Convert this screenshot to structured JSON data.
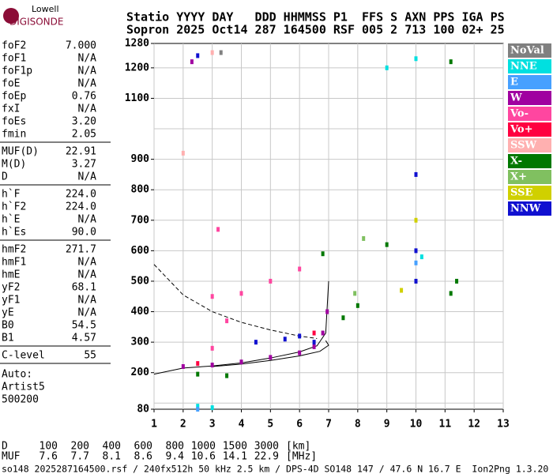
{
  "logo": {
    "top": "Lowell",
    "bottom": "DIGISONDE"
  },
  "header": {
    "line1": "Statio YYYY DAY   DDD HHMMSS P1  FFS S AXN PPS IGA PS",
    "line2": "Sopron 2025 Oct14 287 164500 RSF 005 2 713 100 02+ 25"
  },
  "params": [
    [
      [
        "foF2",
        "7.000"
      ],
      [
        "foF1",
        "N/A"
      ],
      [
        "foF1p",
        "N/A"
      ],
      [
        "foE",
        "N/A"
      ],
      [
        "foEp",
        "0.76"
      ],
      [
        "fxI",
        "N/A"
      ],
      [
        "foEs",
        "3.20"
      ],
      [
        "fmin",
        "2.05"
      ]
    ],
    [
      [
        "MUF(D)",
        "22.91"
      ],
      [
        "M(D)",
        "3.27"
      ],
      [
        "D",
        "N/A"
      ]
    ],
    [
      [
        "h`F",
        "224.0"
      ],
      [
        "h`F2",
        "224.0"
      ],
      [
        "h`E",
        "N/A"
      ],
      [
        "h`Es",
        "90.0"
      ]
    ],
    [
      [
        "hmF2",
        "271.7"
      ],
      [
        "hmF1",
        "N/A"
      ],
      [
        "hmE",
        "N/A"
      ],
      [
        "yF2",
        "68.1"
      ],
      [
        "yF1",
        "N/A"
      ],
      [
        "yE",
        "N/A"
      ],
      [
        "B0",
        "54.5"
      ],
      [
        "B1",
        "4.57"
      ]
    ],
    [
      [
        "C-level",
        "55"
      ]
    ]
  ],
  "auto": [
    "Auto:",
    "Artist5",
    "500200"
  ],
  "muf_table": {
    "d_label": "D",
    "d_values": [
      "100",
      "200",
      "400",
      "600",
      "800",
      "1000",
      "1500",
      "3000"
    ],
    "d_unit": "[km]",
    "muf_label": "MUF",
    "muf_values": [
      "7.6",
      "7.7",
      "8.1",
      "8.6",
      "9.4",
      "10.6",
      "14.1",
      "22.9"
    ],
    "muf_unit": "[MHz]"
  },
  "footer": "so148_2025287164500.rsf / 240fx512h 50 kHz 2.5 km / DPS-4D SO148 147 / 47.6 N 16.7 E  Ion2Png 1.3.20",
  "chart_data": {
    "type": "scatter",
    "xlim": [
      1,
      13
    ],
    "xticks": [
      1,
      2,
      3,
      4,
      5,
      6,
      7,
      8,
      9,
      10,
      11,
      12,
      13
    ],
    "ylim": [
      80,
      1280
    ],
    "yticks": [
      80,
      200,
      300,
      400,
      500,
      600,
      700,
      800,
      900,
      1100,
      1200,
      1280
    ],
    "ygrid": [
      100,
      200,
      300,
      400,
      500,
      600,
      700,
      800,
      900,
      1000,
      1100,
      1200
    ],
    "grid": true,
    "legend": "right",
    "series": [
      {
        "name": "NoVal",
        "color": "#808080",
        "x": [
          3.3
        ],
        "values": [
          1250
        ]
      },
      {
        "name": "NNE",
        "color": "#00e0e0",
        "x": [
          2.5,
          3,
          9,
          10,
          10.2
        ],
        "values": [
          90,
          85,
          1200,
          1230,
          580
        ]
      },
      {
        "name": "E",
        "color": "#46a0ff",
        "x": [
          2.5,
          10
        ],
        "values": [
          80,
          560
        ]
      },
      {
        "name": "W",
        "color": "#a000a0",
        "x": [
          2,
          3,
          4,
          5,
          6,
          6.5,
          6.8,
          6.95,
          2.3
        ],
        "values": [
          220,
          225,
          235,
          250,
          265,
          285,
          330,
          400,
          1220
        ]
      },
      {
        "name": "Vo-",
        "color": "#ff46a0",
        "x": [
          3,
          4,
          5,
          6,
          3.5,
          3,
          3.2
        ],
        "values": [
          450,
          460,
          500,
          540,
          370,
          280,
          670
        ]
      },
      {
        "name": "Vo+",
        "color": "#ff0040",
        "x": [
          6.5,
          2.5
        ],
        "values": [
          330,
          230
        ]
      },
      {
        "name": "SSW",
        "color": "#ffb0b0",
        "x": [
          3,
          2
        ],
        "values": [
          1250,
          920
        ]
      },
      {
        "name": "X-",
        "color": "#007800",
        "x": [
          2.5,
          3.5,
          6.8,
          7.5,
          8,
          9,
          11.2,
          11.4,
          11.2
        ],
        "values": [
          195,
          190,
          590,
          380,
          420,
          620,
          1220,
          500,
          460
        ]
      },
      {
        "name": "X+",
        "color": "#80c060",
        "x": [
          8.2,
          7.9
        ],
        "values": [
          640,
          460
        ]
      },
      {
        "name": "SSE",
        "color": "#d0d000",
        "x": [
          9.5,
          10,
          10
        ],
        "values": [
          470,
          700,
          500
        ]
      },
      {
        "name": "NNW",
        "color": "#1010d0",
        "x": [
          4.5,
          5.5,
          6,
          6.5,
          10,
          10,
          10,
          2.5
        ],
        "values": [
          300,
          310,
          320,
          300,
          850,
          600,
          500,
          1240
        ]
      }
    ],
    "curves": [
      {
        "style": "solid",
        "x": [
          1,
          2,
          3,
          4,
          5,
          6,
          6.6,
          6.9,
          7
        ],
        "values": [
          195,
          215,
          222,
          232,
          248,
          268,
          288,
          330,
          500
        ]
      },
      {
        "style": "solid",
        "x": [
          3,
          4,
          5,
          6,
          6.7,
          7,
          6.9
        ],
        "values": [
          220,
          228,
          240,
          255,
          270,
          290,
          305
        ]
      },
      {
        "style": "dashed",
        "x": [
          1,
          2,
          3,
          4,
          5,
          6,
          6.6
        ],
        "values": [
          555,
          455,
          400,
          365,
          340,
          320,
          312
        ]
      }
    ]
  }
}
